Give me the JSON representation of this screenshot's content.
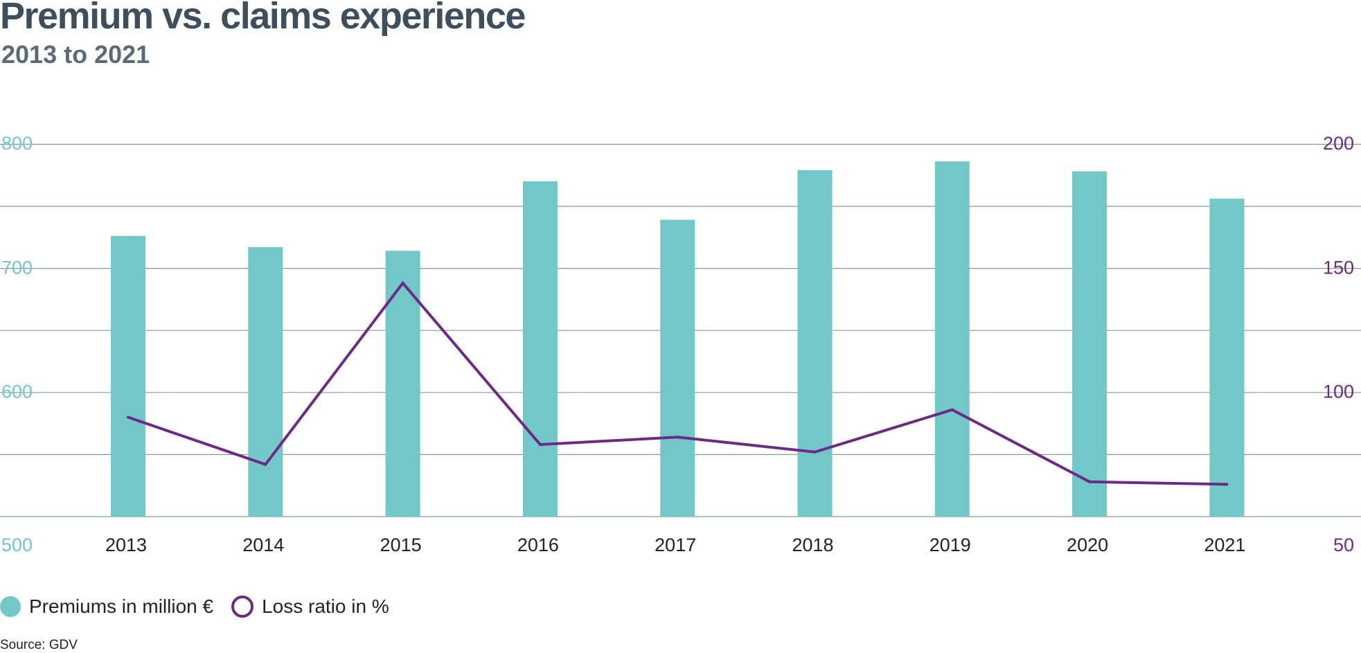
{
  "title": "Premium vs. claims experience",
  "subtitle": "2013 to 2021",
  "source": "Source: GDV",
  "legend": {
    "premiums": "Premiums in million €",
    "loss_ratio": "Loss ratio in %"
  },
  "colors": {
    "bars": "#72c8c8",
    "line": "#6a2a86",
    "grid": "#8a969c",
    "left_axis": "#72c8c8",
    "right_axis": "#6a2a86"
  },
  "chart_data": {
    "type": "bar",
    "title": "Premium vs. claims experience",
    "subtitle": "2013 to 2021",
    "categories": [
      "2013",
      "2014",
      "2015",
      "2016",
      "2017",
      "2018",
      "2019",
      "2020",
      "2021"
    ],
    "series": [
      {
        "name": "Premiums in million €",
        "type": "bar",
        "axis": "left",
        "values": [
          726,
          717,
          714,
          770,
          739,
          779,
          786,
          778,
          756
        ]
      },
      {
        "name": "Loss ratio in %",
        "type": "line",
        "axis": "right",
        "values": [
          90,
          71,
          144,
          79,
          82,
          76,
          93,
          64,
          63
        ]
      }
    ],
    "left_axis": {
      "ylim": [
        500,
        800
      ],
      "ticks": [
        "500",
        "600",
        "700",
        "800"
      ]
    },
    "right_axis": {
      "ylim": [
        50,
        200
      ],
      "ticks": [
        "50",
        "100",
        "150",
        "200"
      ]
    },
    "grid": true,
    "legend_position": "bottom-left"
  }
}
